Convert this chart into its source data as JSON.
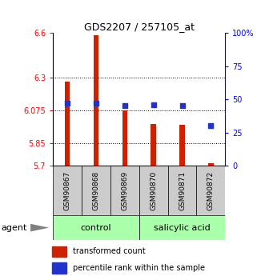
{
  "title": "GDS2207 / 257105_at",
  "samples": [
    "GSM90867",
    "GSM90868",
    "GSM90869",
    "GSM90870",
    "GSM90871",
    "GSM90872"
  ],
  "groups": [
    "control",
    "control",
    "control",
    "salicylic acid",
    "salicylic acid",
    "salicylic acid"
  ],
  "transformed_counts": [
    6.27,
    6.585,
    6.075,
    5.98,
    5.975,
    5.715
  ],
  "percentile_values": [
    47,
    47,
    45,
    46,
    45,
    30
  ],
  "y_min": 5.7,
  "y_max": 6.6,
  "y_ticks": [
    5.7,
    5.85,
    6.075,
    6.3,
    6.6
  ],
  "y_tick_labels": [
    "5.7",
    "5.85",
    "6.075",
    "6.3",
    "6.6"
  ],
  "right_y_ticks": [
    0,
    25,
    50,
    75,
    100
  ],
  "right_y_tick_labels": [
    "0",
    "25",
    "50",
    "75",
    "100%"
  ],
  "bar_color": "#cc2200",
  "dot_color": "#2233cc",
  "grid_lines": [
    5.85,
    6.075,
    6.3
  ],
  "legend_items": [
    {
      "color": "#cc2200",
      "label": "transformed count"
    },
    {
      "color": "#2233cc",
      "label": "percentile rank within the sample"
    }
  ],
  "agent_label": "agent",
  "bar_width": 0.18,
  "dot_size": 18,
  "group_color": "#aaffaa",
  "sample_box_color": "#cccccc",
  "figsize": [
    3.31,
    3.45
  ],
  "dpi": 100
}
